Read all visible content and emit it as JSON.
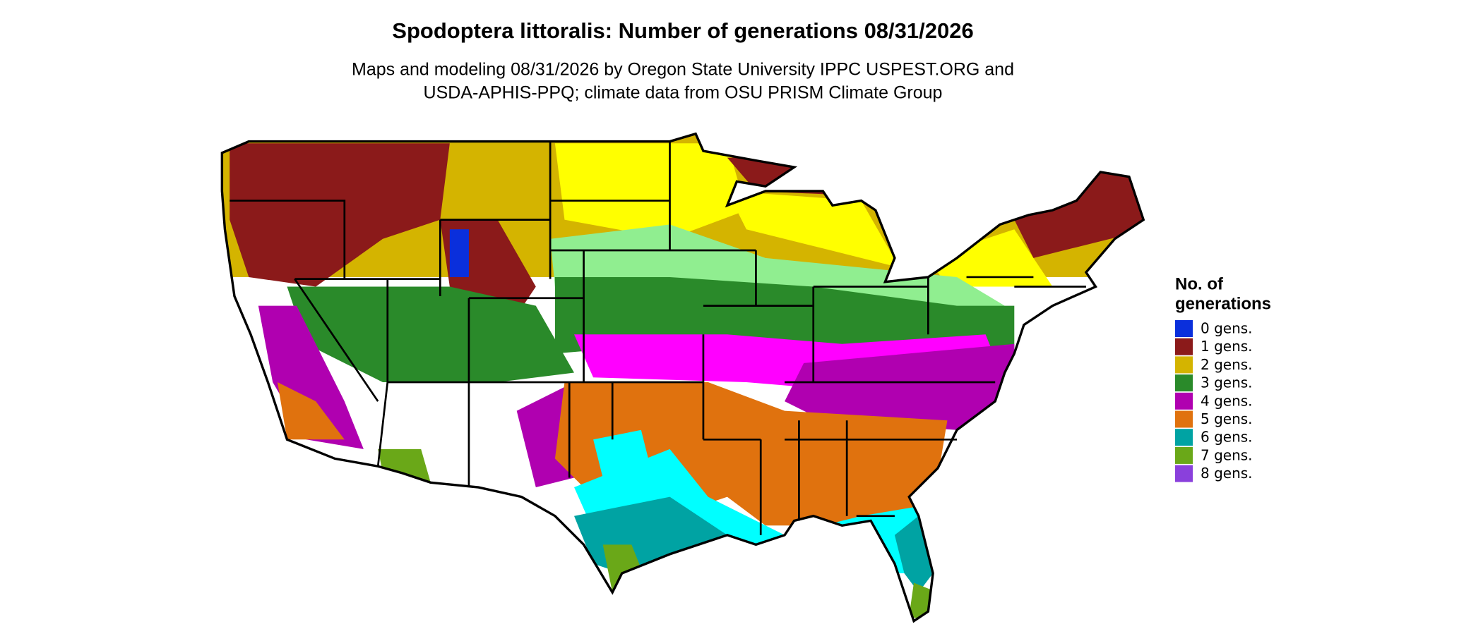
{
  "title": "Spodoptera littoralis: Number of generations 08/31/2026",
  "subtitle": [
    "Maps and modeling 08/31/2026 by Oregon State University IPPC USPEST.ORG and",
    "USDA-APHIS-PPQ; climate data from OSU PRISM Climate Group"
  ],
  "legend": {
    "title": [
      "No. of",
      "generations"
    ],
    "items": [
      {
        "label": "0 gens.",
        "color": "#0a2fdc"
      },
      {
        "label": "1 gens.",
        "color": "#8b1a1a"
      },
      {
        "label": "2 gens.",
        "color": "#d4b400"
      },
      {
        "label": "3 gens.",
        "color": "#2a8a2a"
      },
      {
        "label": "4 gens.",
        "color": "#b000b0"
      },
      {
        "label": "5 gens.",
        "color": "#e0720e"
      },
      {
        "label": "6 gens.",
        "color": "#00a3a3"
      },
      {
        "label": "7 gens.",
        "color": "#6aa818"
      },
      {
        "label": "8 gens.",
        "color": "#8a40dc"
      }
    ]
  }
}
